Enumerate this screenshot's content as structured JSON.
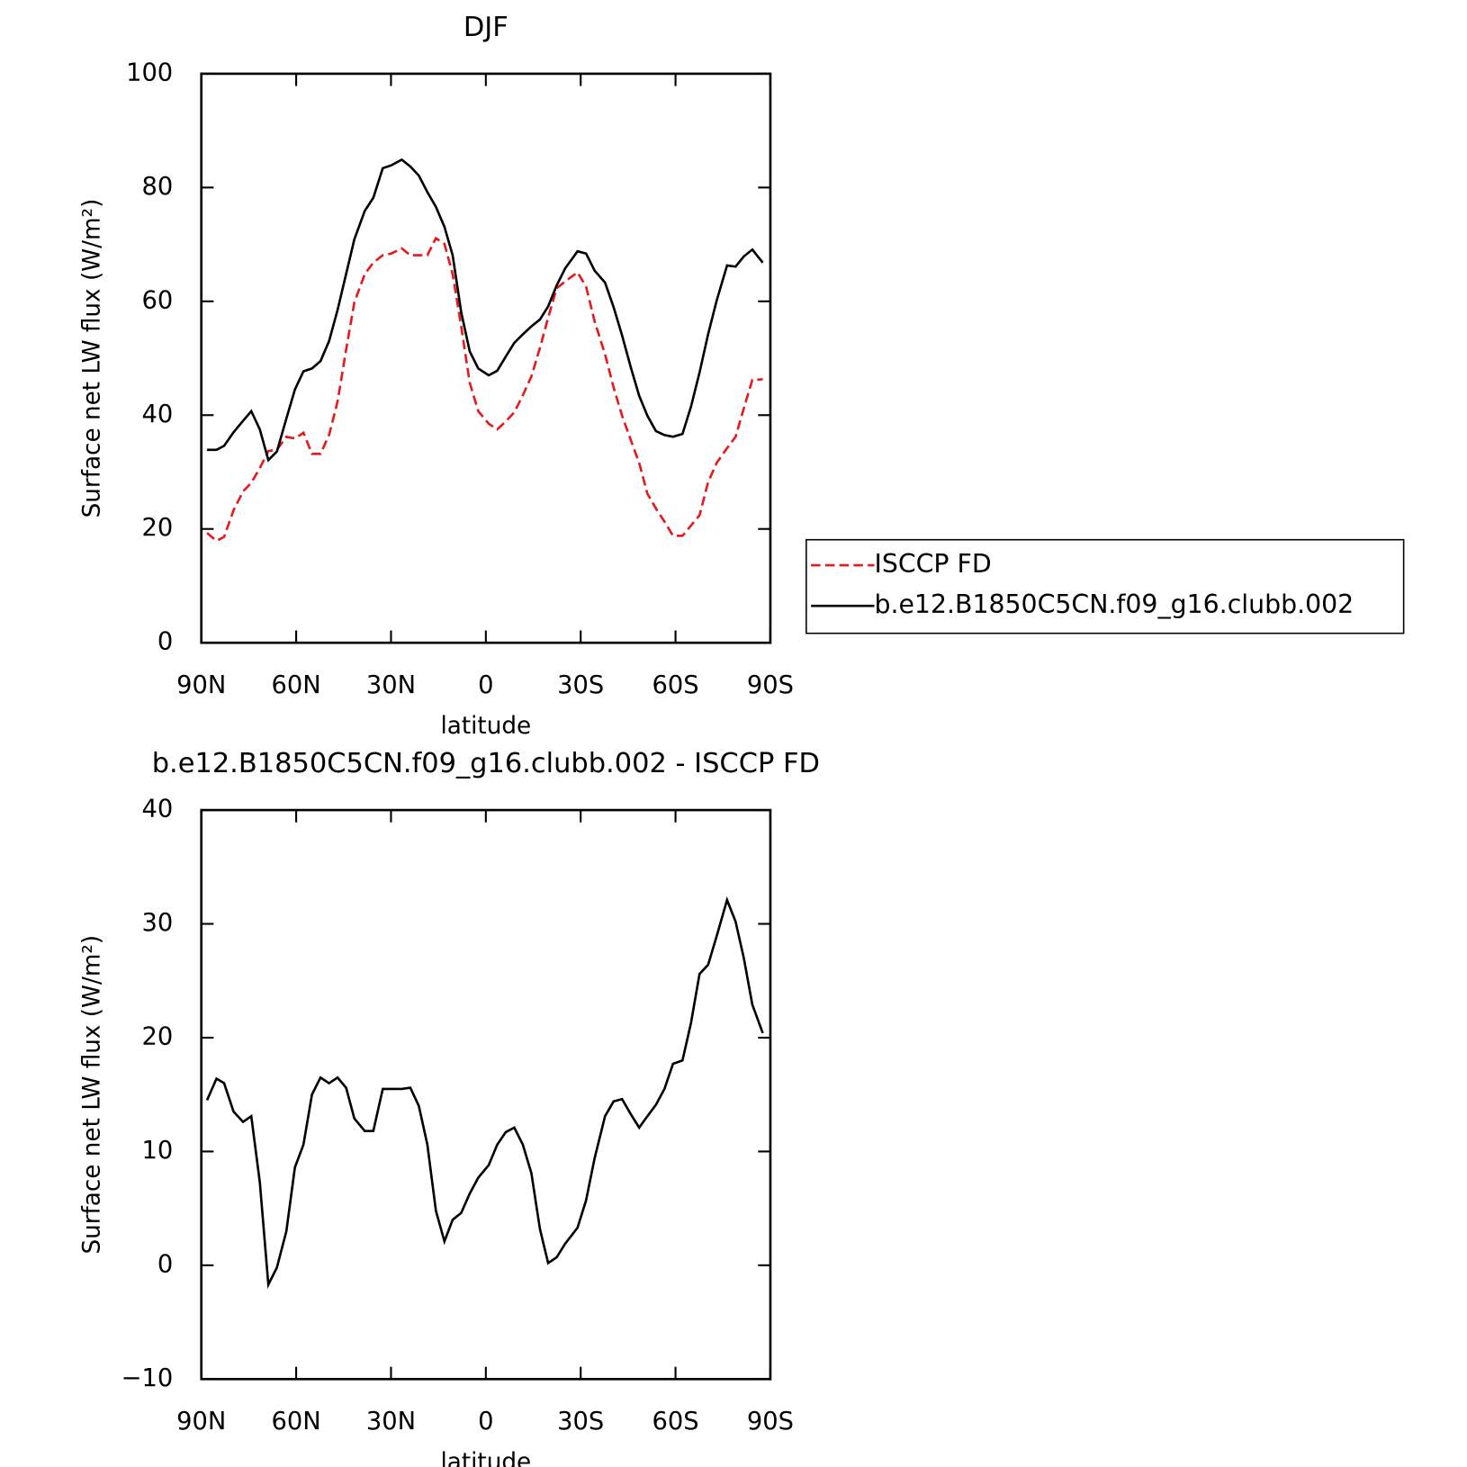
{
  "chart_data": [
    {
      "type": "line",
      "title": "DJF",
      "xlabel": "latitude",
      "ylabel": "Surface net LW flux (W/m²)",
      "x": [
        88.2,
        85.2,
        82.8,
        79.8,
        76.8,
        74.2,
        71.5,
        68.8,
        66.1,
        63.1,
        60.4,
        57.7,
        55,
        52.3,
        49.6,
        46.9,
        44.2,
        41.6,
        38.3,
        35.6,
        32.6,
        29.9,
        26.6,
        23.9,
        21.2,
        18.5,
        15.8,
        13.1,
        10.5,
        7.8,
        5.1,
        2.4,
        -0.9,
        -3.6,
        -6.3,
        -9,
        -11.7,
        -14.4,
        -17.1,
        -19.7,
        -22.4,
        -25.1,
        -29,
        -31.7,
        -34.4,
        -37.7,
        -40.4,
        -43.1,
        -45.8,
        -48.5,
        -51.1,
        -53.8,
        -56.5,
        -59.2,
        -62.2,
        -64.9,
        -67.6,
        -70.3,
        -73,
        -76.3,
        -79,
        -81.6,
        -84.3,
        -87.6
      ],
      "xlim": [
        90,
        -90
      ],
      "xticks": [
        {
          "value": 90,
          "label": "90N"
        },
        {
          "value": 60,
          "label": "60N"
        },
        {
          "value": 30,
          "label": "30N"
        },
        0,
        {
          "value": -30,
          "label": "30S"
        },
        {
          "value": -60,
          "label": "60S"
        },
        {
          "value": -90,
          "label": "90S"
        }
      ],
      "ylim": [
        0,
        100
      ],
      "yticks": [
        0,
        20,
        40,
        60,
        80,
        100
      ],
      "legend": "outside-right",
      "series": [
        {
          "name": "ISCCP FD",
          "color": "#e41a1c",
          "style": "dashed",
          "values": [
            19.3,
            17.9,
            18.6,
            23.3,
            26.6,
            28.1,
            30.7,
            33.7,
            33.9,
            36.2,
            35.9,
            36.9,
            33.2,
            33.2,
            36.5,
            42.4,
            51.5,
            59.8,
            64.8,
            66.8,
            68.1,
            68.4,
            69.3,
            68.1,
            68.1,
            68.1,
            71.1,
            70.1,
            64.8,
            55.6,
            45.7,
            40.7,
            38.5,
            37.5,
            38.9,
            40.5,
            43.5,
            46.8,
            51.8,
            57.1,
            62.3,
            63.5,
            65.1,
            62.6,
            56.5,
            50.7,
            44.9,
            39.9,
            35.7,
            31.6,
            26.2,
            23.6,
            21.3,
            18.8,
            18.8,
            20.6,
            22.4,
            28.2,
            31.6,
            34.2,
            36.2,
            41.2,
            46.2,
            46.3
          ]
        },
        {
          "name": "b.e12.B1850C5CN.f09_g16.clubb.002",
          "color": "#000000",
          "style": "solid",
          "values": [
            33.9,
            33.9,
            34.6,
            37.0,
            39.0,
            40.7,
            37.5,
            32.1,
            33.6,
            39.4,
            44.5,
            47.7,
            48.2,
            49.5,
            53.0,
            58.5,
            64.8,
            70.9,
            75.9,
            78.2,
            83.4,
            83.9,
            84.9,
            83.7,
            82.1,
            79.2,
            76.6,
            73.1,
            68.1,
            58.1,
            51.2,
            48.2,
            47.0,
            47.8,
            50.3,
            52.7,
            54.2,
            55.6,
            56.8,
            59.1,
            62.8,
            65.8,
            68.8,
            68.4,
            65.4,
            63.3,
            59.0,
            54.0,
            48.5,
            43.4,
            39.9,
            37.2,
            36.5,
            36.2,
            36.7,
            41.5,
            47.5,
            54.2,
            60.1,
            66.3,
            66.1,
            67.9,
            69.1,
            66.8
          ]
        }
      ]
    },
    {
      "type": "line",
      "title": "b.e12.B1850C5CN.f09_g16.clubb.002 - ISCCP FD",
      "xlabel": "latitude",
      "ylabel": "Surface net LW flux (W/m²)",
      "x": [
        88.2,
        85.2,
        82.8,
        79.8,
        76.8,
        74.2,
        71.5,
        68.8,
        66.1,
        63.1,
        60.4,
        57.7,
        55,
        52.3,
        49.6,
        46.9,
        44.2,
        41.6,
        38.3,
        35.6,
        32.6,
        29.9,
        26.6,
        23.9,
        21.2,
        18.5,
        15.8,
        13.1,
        10.5,
        7.8,
        5.1,
        2.4,
        -0.9,
        -3.6,
        -6.3,
        -9,
        -11.7,
        -14.4,
        -17.1,
        -19.7,
        -22.4,
        -25.1,
        -29,
        -31.7,
        -34.4,
        -37.7,
        -40.4,
        -43.1,
        -45.8,
        -48.5,
        -51.1,
        -53.8,
        -56.5,
        -59.2,
        -62.2,
        -64.9,
        -67.6,
        -70.3,
        -73,
        -76.3,
        -79,
        -81.6,
        -84.3,
        -87.6
      ],
      "xlim": [
        90,
        -90
      ],
      "xticks": [
        {
          "value": 90,
          "label": "90N"
        },
        {
          "value": 60,
          "label": "60N"
        },
        {
          "value": 30,
          "label": "30N"
        },
        0,
        {
          "value": -30,
          "label": "30S"
        },
        {
          "value": -60,
          "label": "60S"
        },
        {
          "value": -90,
          "label": "90S"
        }
      ],
      "ylim": [
        -10,
        40
      ],
      "yticks": [
        {
          "value": -10,
          "label": "−10"
        },
        0,
        10,
        20,
        30,
        40
      ],
      "series": [
        {
          "color": "#000000",
          "style": "solid",
          "values": [
            14.5,
            16.4,
            16.0,
            13.5,
            12.6,
            13.1,
            7.3,
            -1.7,
            -0.2,
            3.0,
            8.6,
            10.6,
            15.0,
            16.5,
            16.0,
            16.5,
            15.6,
            12.9,
            11.8,
            11.8,
            15.5,
            15.5,
            15.5,
            15.6,
            14.0,
            10.6,
            4.8,
            2.1,
            4.0,
            4.6,
            6.3,
            7.7,
            8.8,
            10.6,
            11.7,
            12.1,
            10.6,
            8.1,
            3.2,
            0.2,
            0.7,
            1.9,
            3.3,
            5.7,
            9.4,
            13.1,
            14.4,
            14.6,
            13.3,
            12.1,
            13.1,
            14.1,
            15.5,
            17.7,
            18.0,
            21.3,
            25.6,
            26.4,
            28.9,
            32.1,
            30.2,
            27.0,
            22.9,
            20.4
          ]
        }
      ]
    }
  ]
}
